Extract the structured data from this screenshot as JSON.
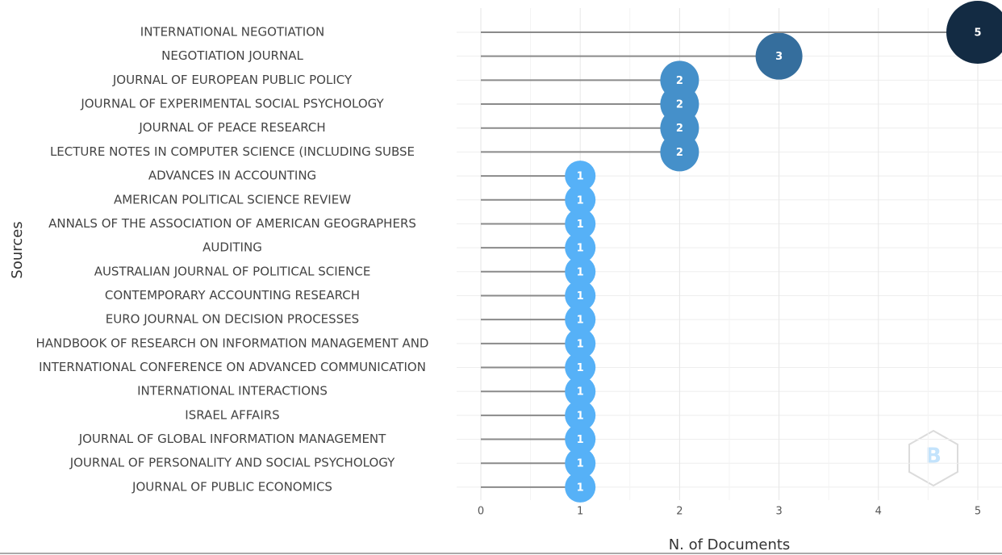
{
  "chart_data": {
    "type": "lollipop",
    "y_label": "Sources",
    "x_label": "N. of Documents",
    "categories": [
      "INTERNATIONAL NEGOTIATION",
      "NEGOTIATION JOURNAL",
      "JOURNAL OF EUROPEAN PUBLIC POLICY",
      "JOURNAL OF EXPERIMENTAL SOCIAL PSYCHOLOGY",
      "JOURNAL OF PEACE RESEARCH",
      "LECTURE NOTES IN COMPUTER SCIENCE (INCLUDING SUBSE",
      "ADVANCES IN ACCOUNTING",
      "AMERICAN POLITICAL SCIENCE REVIEW",
      "ANNALS OF THE ASSOCIATION OF AMERICAN GEOGRAPHERS",
      "AUDITING",
      "AUSTRALIAN JOURNAL OF POLITICAL SCIENCE",
      "CONTEMPORARY ACCOUNTING RESEARCH",
      "EURO JOURNAL ON DECISION PROCESSES",
      "HANDBOOK OF RESEARCH ON INFORMATION MANAGEMENT AND",
      "INTERNATIONAL CONFERENCE ON ADVANCED COMMUNICATION",
      "INTERNATIONAL INTERACTIONS",
      "ISRAEL AFFAIRS",
      "JOURNAL OF GLOBAL INFORMATION MANAGEMENT",
      "JOURNAL OF PERSONALITY AND SOCIAL PSYCHOLOGY",
      "JOURNAL OF PUBLIC ECONOMICS"
    ],
    "values": [
      5,
      3,
      2,
      2,
      2,
      2,
      1,
      1,
      1,
      1,
      1,
      1,
      1,
      1,
      1,
      1,
      1,
      1,
      1,
      1
    ],
    "xlim": [
      0,
      5
    ],
    "xticks": [
      0,
      1,
      2,
      3,
      4,
      5
    ],
    "grid": true,
    "color_low": "#56b1f7",
    "color_high": "#132b43",
    "stem_color": "#8a8a8a"
  }
}
